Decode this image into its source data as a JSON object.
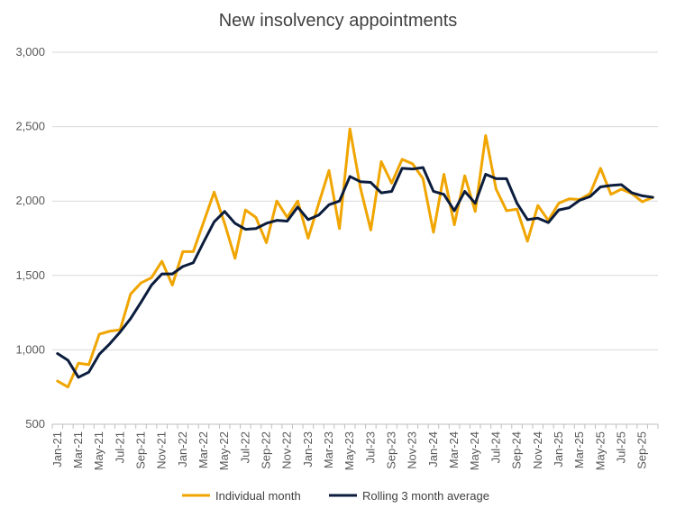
{
  "chart_data": {
    "type": "line",
    "title": "New insolvency appointments",
    "xlabel": "",
    "ylabel": "",
    "ylim": [
      500,
      3000
    ],
    "yticks": [
      500,
      1000,
      1500,
      2000,
      2500,
      3000
    ],
    "ytick_labels": [
      "500",
      "1,000",
      "1,500",
      "2,000",
      "2,500",
      "3,000"
    ],
    "grid": true,
    "legend_position": "bottom-center",
    "categories": [
      "Jan-21",
      "Feb-21",
      "Mar-21",
      "Apr-21",
      "May-21",
      "Jun-21",
      "Jul-21",
      "Aug-21",
      "Sep-21",
      "Oct-21",
      "Nov-21",
      "Dec-21",
      "Jan-22",
      "Feb-22",
      "Mar-22",
      "Apr-22",
      "May-22",
      "Jun-22",
      "Jul-22",
      "Aug-22",
      "Sep-22",
      "Oct-22",
      "Nov-22",
      "Dec-22",
      "Jan-23",
      "Feb-23",
      "Mar-23",
      "Apr-23",
      "May-23",
      "Jun-23",
      "Jul-23",
      "Aug-23",
      "Sep-23",
      "Oct-23",
      "Nov-23",
      "Dec-23",
      "Jan-24",
      "Feb-24",
      "Mar-24",
      "Apr-24",
      "May-24",
      "Jun-24",
      "Jul-24",
      "Aug-24",
      "Sep-24",
      "Oct-24",
      "Nov-24",
      "Dec-24",
      "Jan-25",
      "Feb-25",
      "Mar-25",
      "Apr-25",
      "May-25",
      "Jun-25",
      "Jul-25",
      "Aug-25",
      "Sep-25",
      "Oct-25"
    ],
    "tick_labels": [
      "Jan-21",
      "Mar-21",
      "May-21",
      "Jul-21",
      "Sep-21",
      "Nov-21",
      "Jan-22",
      "Mar-22",
      "May-22",
      "Jul-22",
      "Sep-22",
      "Nov-22",
      "Jan-23",
      "Mar-23",
      "May-23",
      "Jul-23",
      "Sep-23",
      "Nov-23",
      "Jan-24",
      "Mar-24",
      "May-24",
      "Jul-24",
      "Sep-24",
      "Nov-24",
      "Jan-25",
      "Mar-25",
      "May-25",
      "Jul-25",
      "Sep-25"
    ],
    "series": [
      {
        "name": "Individual month",
        "color": "#F0A500",
        "values": [
          790,
          750,
          910,
          900,
          1105,
          1125,
          1135,
          1375,
          1450,
          1485,
          1595,
          1435,
          1660,
          1660,
          1860,
          2060,
          1850,
          1615,
          1940,
          1890,
          1720,
          2000,
          1890,
          2000,
          1750,
          1980,
          2205,
          1815,
          2485,
          2090,
          1805,
          2265,
          2120,
          2280,
          2250,
          2150,
          1790,
          2180,
          1840,
          2170,
          1930,
          2440,
          2080,
          1935,
          1945,
          1730,
          1970,
          1870,
          1985,
          2015,
          2010,
          2050,
          2220,
          2045,
          2080,
          2050,
          1995,
          2025
        ]
      },
      {
        "name": "Rolling 3 month average",
        "color": "#0B1C3D",
        "values": [
          975,
          930,
          815,
          850,
          970,
          1040,
          1120,
          1210,
          1320,
          1435,
          1510,
          1510,
          1560,
          1585,
          1725,
          1860,
          1930,
          1850,
          1810,
          1815,
          1850,
          1870,
          1865,
          1960,
          1875,
          1905,
          1975,
          2000,
          2165,
          2130,
          2125,
          2055,
          2065,
          2220,
          2215,
          2225,
          2065,
          2045,
          1935,
          2065,
          1985,
          2180,
          2150,
          2150,
          1985,
          1875,
          1885,
          1855,
          1940,
          1955,
          2005,
          2030,
          2095,
          2105,
          2110,
          2055,
          2035,
          2025
        ]
      }
    ]
  }
}
